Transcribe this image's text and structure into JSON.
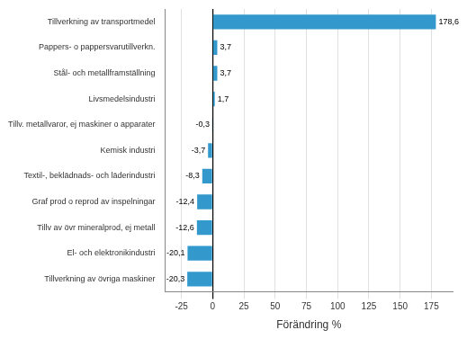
{
  "chart_data": {
    "type": "bar",
    "orientation": "horizontal",
    "categories": [
      "Tillverkning av övriga maskiner",
      "El- och elektronikindustri",
      "Tillv av övr mineralprod, ej metall",
      "Graf prod o reprod av inspelningar",
      "Textil-, beklädnads- och läderindustri",
      "Kemisk industri",
      "Tillv. metallvaror, ej maskiner o apparater",
      "Livsmedelsindustri",
      "Stål- och metallframställning",
      "Pappers- o pappersvarutillverkn.",
      "Tillverkning av transportmedel"
    ],
    "values": [
      -20.3,
      -20.1,
      -12.6,
      -12.4,
      -8.3,
      -3.7,
      -0.3,
      1.7,
      3.7,
      3.7,
      178.6
    ],
    "value_labels": [
      "-20,3",
      "-20,1",
      "-12,6",
      "-12,4",
      "-8,3",
      "-3,7",
      "-0,3",
      "1,7",
      "3,7",
      "3,7",
      "178,6"
    ],
    "color": "#3399cc",
    "xlabel": "Förändring %",
    "xlim": [
      -38,
      192
    ],
    "xticks": [
      -25,
      0,
      25,
      50,
      75,
      100,
      125,
      150,
      175
    ],
    "grid": true,
    "data_labels": true
  }
}
